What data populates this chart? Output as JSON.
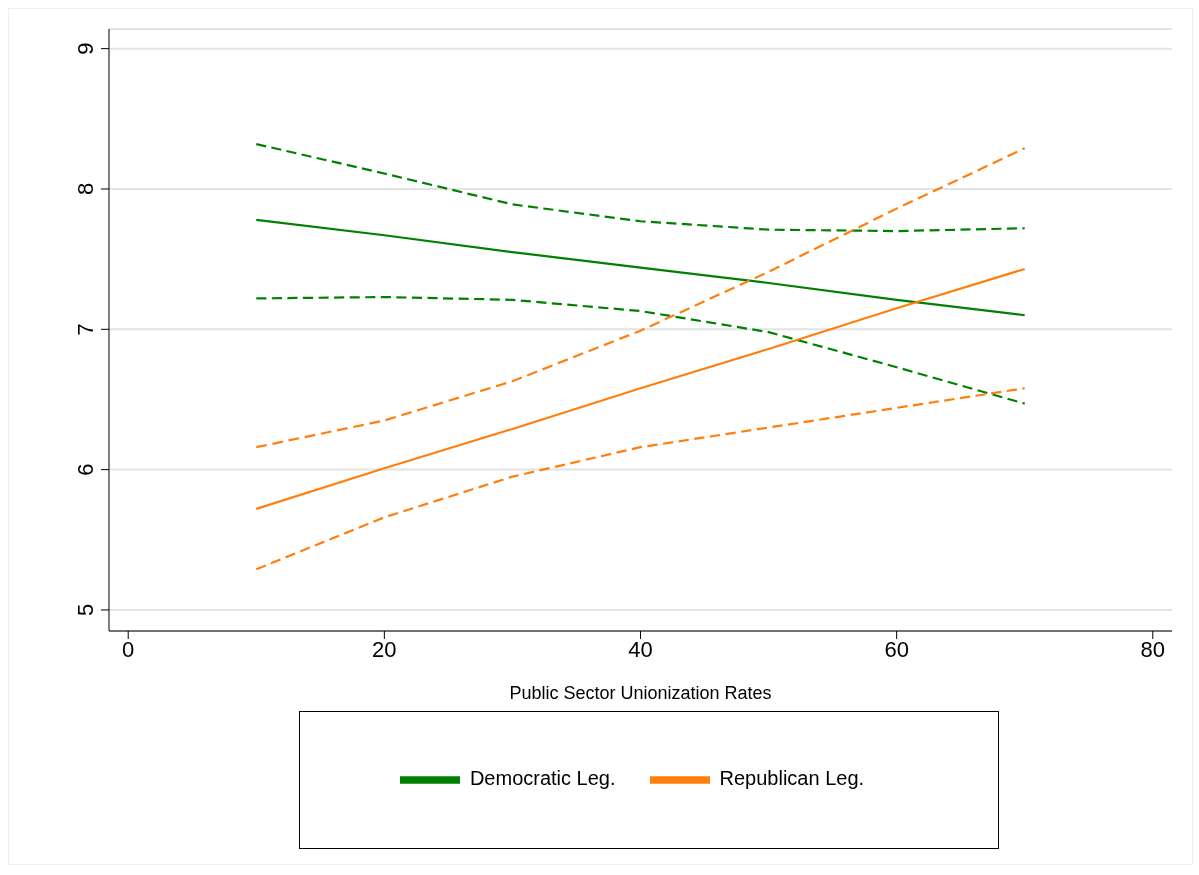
{
  "chart_data": {
    "type": "line",
    "xlabel": "Public Sector Unionization Rates",
    "x": [
      10,
      20,
      30,
      40,
      50,
      60,
      70
    ],
    "series": [
      {
        "name": "Democratic Leg.",
        "color": "#008000",
        "values": [
          7.78,
          7.67,
          7.55,
          7.44,
          7.33,
          7.21,
          7.1
        ]
      },
      {
        "color": "#008000",
        "line_style": "dashed",
        "values": [
          8.32,
          8.11,
          7.89,
          7.77,
          7.71,
          7.7,
          7.72
        ]
      },
      {
        "color": "#008000",
        "line_style": "dashed",
        "values": [
          7.22,
          7.23,
          7.21,
          7.13,
          6.98,
          6.73,
          6.47
        ]
      },
      {
        "name": "Republican Leg.",
        "color": "#ff7f0e",
        "values": [
          5.72,
          6.01,
          6.29,
          6.58,
          6.86,
          7.15,
          7.43
        ]
      },
      {
        "color": "#ff7f0e",
        "line_style": "dashed",
        "values": [
          6.16,
          6.35,
          6.63,
          6.99,
          7.41,
          7.86,
          8.29
        ]
      },
      {
        "color": "#ff7f0e",
        "line_style": "dashed",
        "values": [
          5.29,
          5.66,
          5.95,
          6.16,
          6.3,
          6.44,
          6.58
        ]
      }
    ],
    "xlim": [
      -1.5,
      81.5
    ],
    "xticks": [
      0,
      20,
      40,
      60,
      80
    ],
    "ylim": [
      4.85,
      9.14
    ],
    "yticks": [
      5,
      6,
      7,
      8,
      9
    ],
    "grid": "y",
    "legend": "bottom",
    "marker": "none",
    "line_style": "solid"
  }
}
